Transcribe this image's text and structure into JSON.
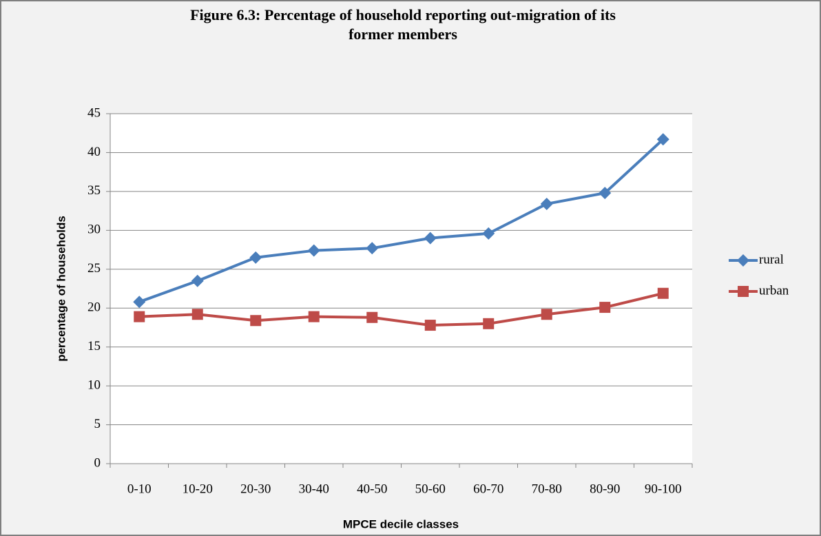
{
  "chart_data": {
    "type": "line",
    "title": "Figure 6.3: Percentage of household reporting out-migration of its former members",
    "x_label": "MPCE decile classes",
    "y_label": "percentage of households",
    "categories": [
      "0-10",
      "10-20",
      "20-30",
      "30-40",
      "40-50",
      "50-60",
      "60-70",
      "70-80",
      "80-90",
      "90-100"
    ],
    "series": [
      {
        "name": "rural",
        "color": "#4a7ebb",
        "marker": "diamond",
        "values": [
          20.8,
          23.5,
          26.5,
          27.4,
          27.7,
          29.0,
          29.6,
          33.4,
          34.8,
          41.7
        ]
      },
      {
        "name": "urban",
        "color": "#be4b48",
        "marker": "square",
        "values": [
          18.9,
          19.2,
          18.4,
          18.9,
          18.8,
          17.8,
          18.0,
          19.2,
          20.1,
          21.9
        ]
      }
    ],
    "ylim": [
      0,
      45
    ],
    "yticks": [
      0,
      5,
      10,
      15,
      20,
      25,
      30,
      35,
      40,
      45
    ],
    "grid": true,
    "legend": "right"
  }
}
